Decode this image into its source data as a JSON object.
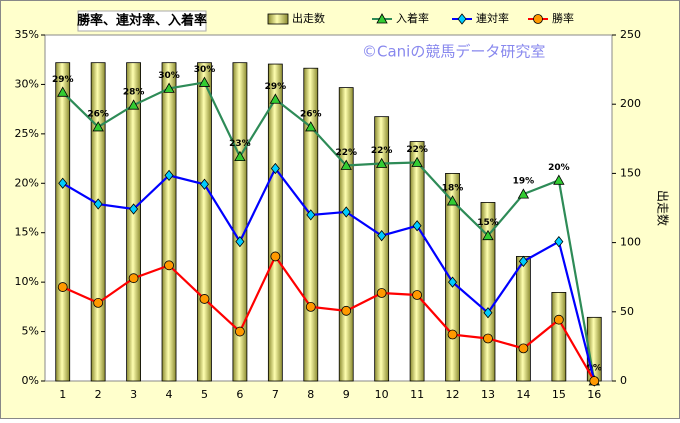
{
  "chart_data": {
    "type": "bar",
    "title": "勝率、連対率、入着率",
    "watermark": "©Caniの競馬データ研究室",
    "y2_label": "出走数",
    "categories": [
      "1",
      "2",
      "3",
      "4",
      "5",
      "6",
      "7",
      "8",
      "9",
      "10",
      "11",
      "12",
      "13",
      "14",
      "15",
      "16"
    ],
    "series": [
      {
        "name": "出走数",
        "type": "bar",
        "axis": "y2",
        "color": "#e8e890",
        "values": [
          230,
          230,
          230,
          230,
          230,
          230,
          229,
          226,
          212,
          191,
          173,
          150,
          129,
          90,
          64,
          46
        ]
      },
      {
        "name": "入着率",
        "type": "line",
        "color": "#2e8b57",
        "marker": "triangle",
        "marker_color": "#33cc33",
        "values": [
          29.2,
          25.7,
          27.9,
          29.6,
          30.2,
          22.7,
          28.5,
          25.7,
          21.8,
          22.0,
          22.1,
          18.2,
          14.7,
          18.9,
          20.3,
          0
        ],
        "value_labels": [
          "29%",
          "26%",
          "28%",
          "30%",
          "30%",
          "23%",
          "29%",
          "26%",
          "22%",
          "22%",
          "22%",
          "18%",
          "15%",
          "19%",
          "20%",
          "0%"
        ]
      },
      {
        "name": "連対率",
        "type": "line",
        "color": "#0000ff",
        "marker": "diamond",
        "marker_color": "#00ccff",
        "values": [
          20.0,
          17.9,
          17.4,
          20.8,
          19.9,
          14.1,
          21.5,
          16.8,
          17.1,
          14.7,
          15.7,
          10.0,
          6.9,
          12.1,
          14.1,
          0
        ]
      },
      {
        "name": "勝率",
        "type": "line",
        "color": "#ff0000",
        "marker": "circle",
        "marker_color": "#ff9900",
        "values": [
          9.5,
          7.9,
          10.4,
          11.7,
          8.3,
          5.0,
          12.6,
          7.5,
          7.1,
          8.9,
          8.7,
          4.7,
          4.3,
          3.3,
          6.2,
          0
        ]
      }
    ],
    "ylim": [
      0,
      35
    ],
    "yticks": [
      {
        "value": 0,
        "label": "0%"
      },
      {
        "value": 5,
        "label": "5%"
      },
      {
        "value": 10,
        "label": "10%"
      },
      {
        "value": 15,
        "label": "15%"
      },
      {
        "value": 20,
        "label": "20%"
      },
      {
        "value": 25,
        "label": "25%"
      },
      {
        "value": 30,
        "label": "30%"
      },
      {
        "value": 35,
        "label": "35%"
      }
    ],
    "y2lim": [
      0,
      250
    ],
    "y2ticks": [
      0,
      50,
      100,
      150,
      200,
      250
    ],
    "grid": false
  }
}
